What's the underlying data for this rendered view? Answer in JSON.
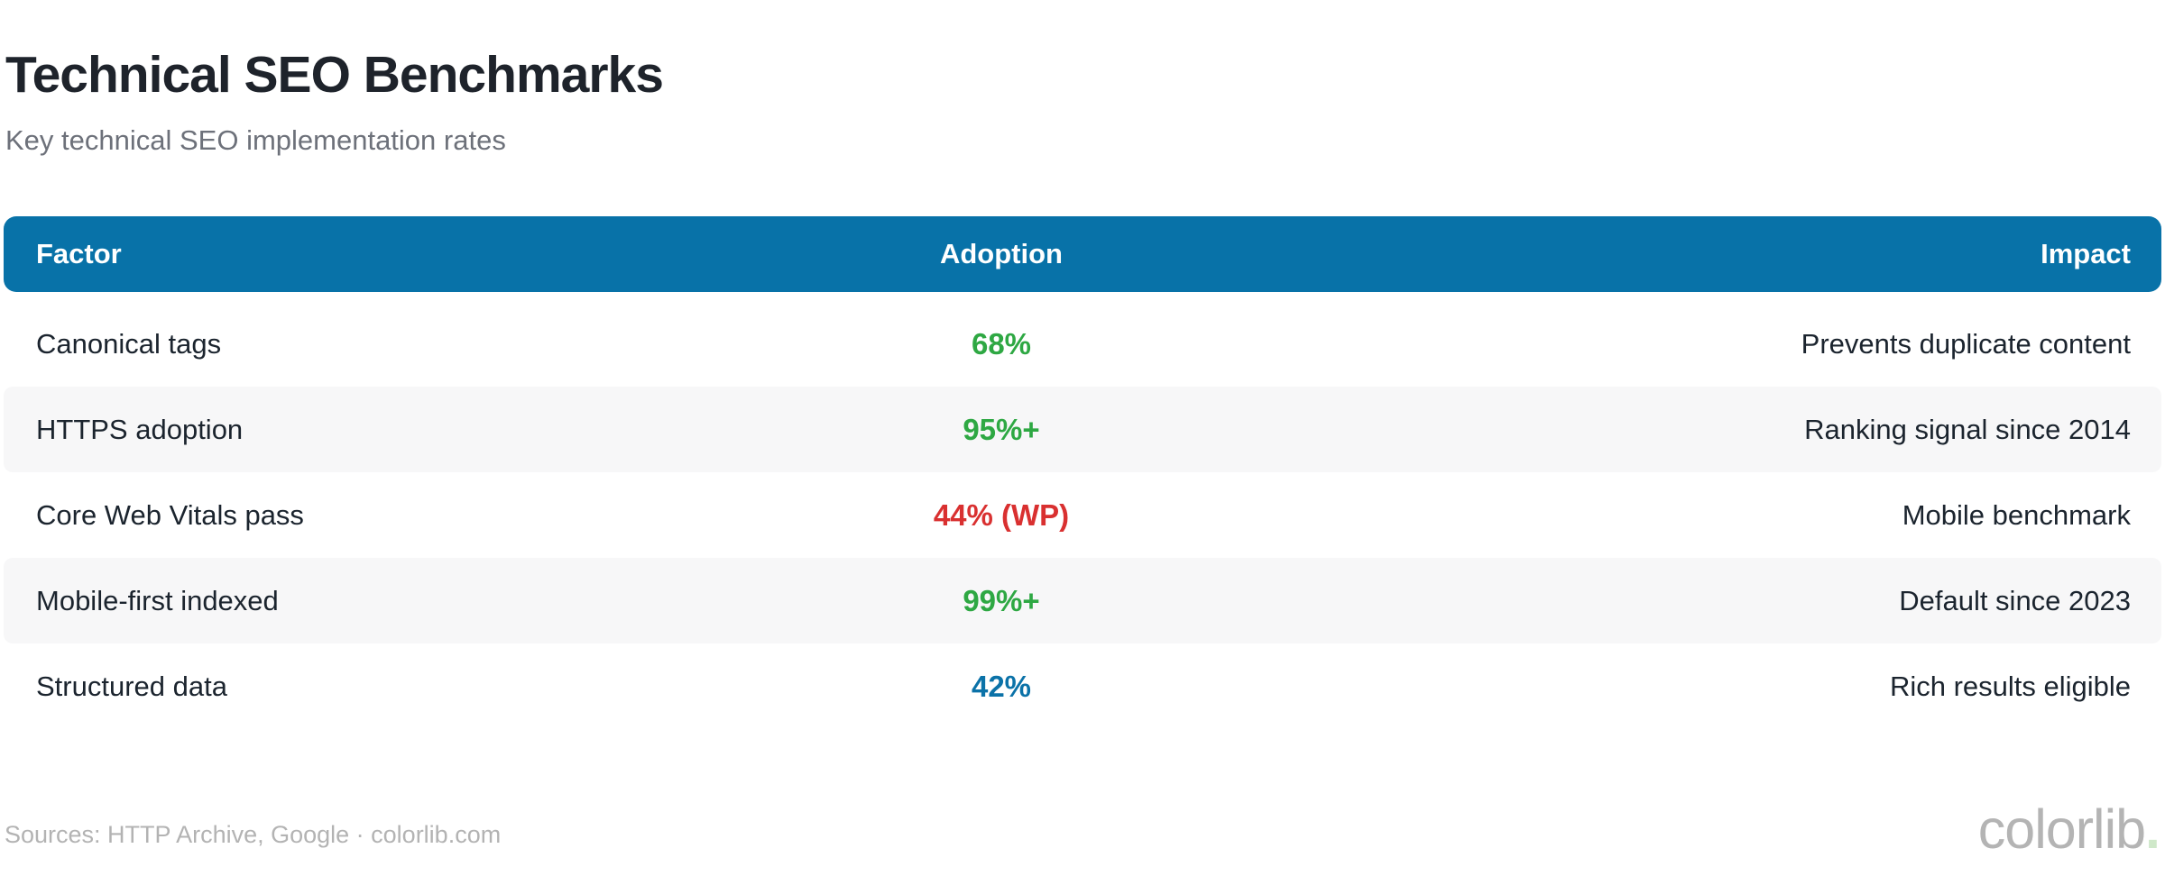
{
  "page": {
    "title": "Technical SEO Benchmarks",
    "subtitle": "Key technical SEO implementation rates"
  },
  "table": {
    "columns": [
      "Factor",
      "Adoption",
      "Impact"
    ],
    "rows": [
      {
        "factor": "Canonical tags",
        "adoption": "68%",
        "color": "green",
        "impact": "Prevents duplicate content"
      },
      {
        "factor": "HTTPS adoption",
        "adoption": "95%+",
        "color": "green",
        "impact": "Ranking signal since 2014"
      },
      {
        "factor": "Core Web Vitals pass",
        "adoption": "44% (WP)",
        "color": "red",
        "impact": "Mobile benchmark"
      },
      {
        "factor": "Mobile-first indexed",
        "adoption": "99%+",
        "color": "green",
        "impact": "Default since 2023"
      },
      {
        "factor": "Structured data",
        "adoption": "42%",
        "color": "blue",
        "impact": "Rich results eligible"
      }
    ]
  },
  "footer": {
    "sources": "Sources: HTTP Archive, Google · colorlib.com",
    "brand": "colorlib",
    "brand_dot": "."
  },
  "colors": {
    "header_bg": "#0872a8",
    "adoption_green": "#2ea843",
    "adoption_red": "#d93030",
    "adoption_blue": "#0b72a8",
    "row_stripe": "#f7f7f8",
    "title_text": "#1e232b",
    "subtitle_text": "#6d717a",
    "body_text": "#1b242e",
    "footer_text": "#b3b3b3",
    "brand_dot_green": "#cfe8c9"
  },
  "chart_data": {
    "type": "table",
    "title": "Technical SEO Benchmarks",
    "subtitle": "Key technical SEO implementation rates",
    "columns": [
      "Factor",
      "Adoption",
      "Impact"
    ],
    "rows": [
      [
        "Canonical tags",
        "68%",
        "Prevents duplicate content"
      ],
      [
        "HTTPS adoption",
        "95%+",
        "Ranking signal since 2014"
      ],
      [
        "Core Web Vitals pass",
        "44% (WP)",
        "Mobile benchmark"
      ],
      [
        "Mobile-first indexed",
        "99%+",
        "Default since 2023"
      ],
      [
        "Structured data",
        "42%",
        "Rich results eligible"
      ]
    ],
    "adoption_values_numeric": [
      68,
      95,
      44,
      99,
      42
    ],
    "value_colors": [
      "green",
      "green",
      "red",
      "green",
      "blue"
    ],
    "legend_position": "none",
    "grid": false
  }
}
